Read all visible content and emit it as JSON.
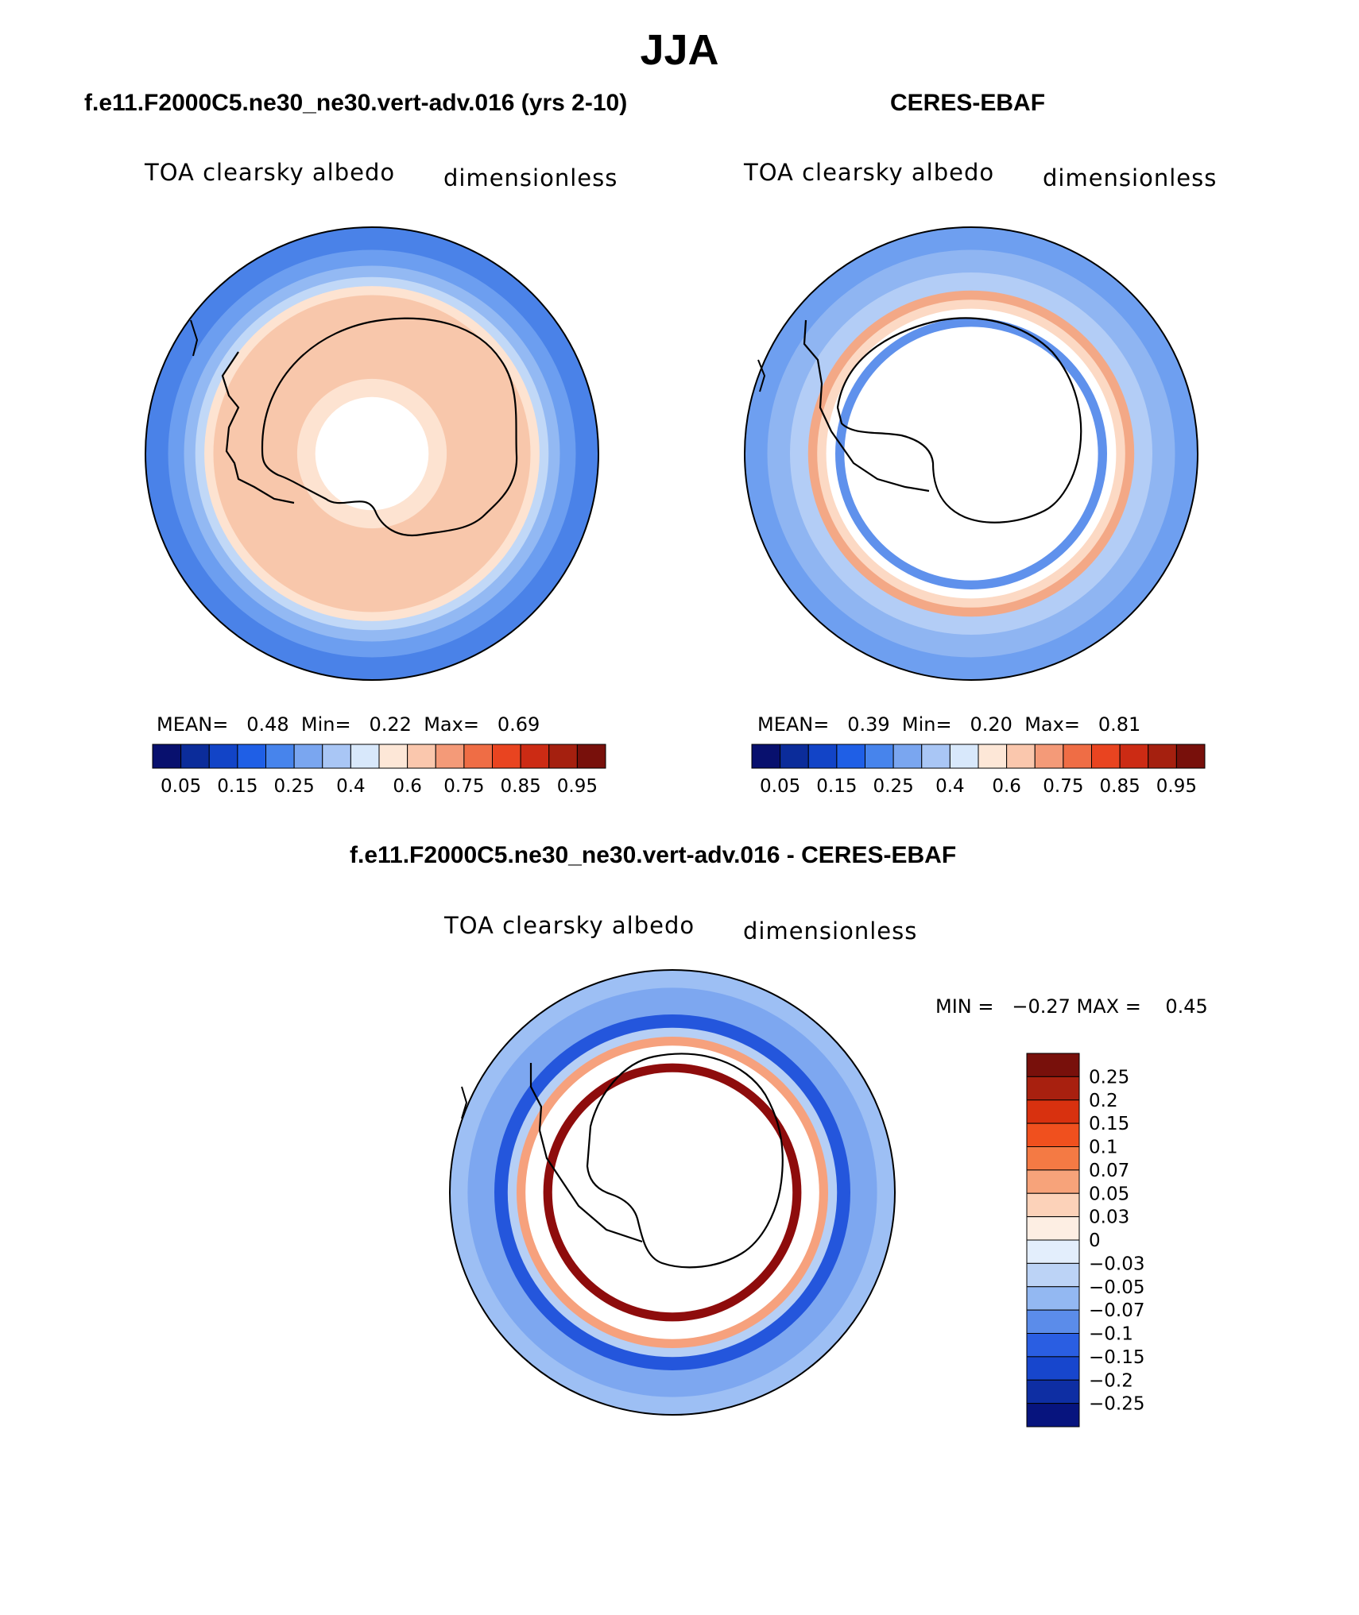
{
  "figure": {
    "title": "JJA",
    "panels": [
      {
        "id": "model",
        "heading": "f.e11.F2000C5.ne30_ne30.vert-adv.016 (yrs 2-10)",
        "variable": "TOA clearsky albedo",
        "units": "dimensionless",
        "stats_line": "MEAN=   0.48  Min=   0.22  Max=   0.69",
        "colorbar": {
          "colors": [
            "#08106e",
            "#0b2c9a",
            "#1244c7",
            "#1f5fe6",
            "#4784ec",
            "#7aa6f0",
            "#a9c6f5",
            "#d8e8fb",
            "#fde7d7",
            "#fac7ad",
            "#f49a78",
            "#ef6d45",
            "#e94420",
            "#cc2b14",
            "#a5200f",
            "#78100b"
          ],
          "tick_labels": [
            "0.05",
            "0.15",
            "0.25",
            "0.4",
            "0.6",
            "0.75",
            "0.85",
            "0.95"
          ]
        },
        "map_rings": [
          {
            "fraction": 1.0,
            "color": "#4a82e8"
          },
          {
            "fraction": 0.9,
            "color": "#6c9ef0"
          },
          {
            "fraction": 0.83,
            "color": "#93b9f3"
          },
          {
            "fraction": 0.78,
            "color": "#c1d8f7"
          },
          {
            "fraction": 0.74,
            "color": "#fde3d1"
          },
          {
            "fraction": 0.7,
            "color": "#f8c7ab"
          },
          {
            "fraction": 0.33,
            "color": "#fde3d1"
          },
          {
            "fraction": 0.25,
            "color": "#ffffff"
          }
        ]
      },
      {
        "id": "obs",
        "heading": "CERES-EBAF",
        "variable": "TOA clearsky albedo",
        "units": "dimensionless",
        "stats_line": "MEAN=   0.39  Min=   0.20  Max=   0.81",
        "colorbar": {
          "colors": [
            "#08106e",
            "#0b2c9a",
            "#1244c7",
            "#1f5fe6",
            "#4784ec",
            "#7aa6f0",
            "#a9c6f5",
            "#d8e8fb",
            "#fde7d7",
            "#fac7ad",
            "#f49a78",
            "#ef6d45",
            "#e94420",
            "#cc2b14",
            "#a5200f",
            "#78100b"
          ],
          "tick_labels": [
            "0.05",
            "0.15",
            "0.25",
            "0.4",
            "0.6",
            "0.75",
            "0.85",
            "0.95"
          ]
        },
        "map_rings": [
          {
            "fraction": 1.0,
            "color": "#6e9ff0"
          },
          {
            "fraction": 0.9,
            "color": "#8fb5f2"
          },
          {
            "fraction": 0.8,
            "color": "#b3cdf6"
          },
          {
            "fraction": 0.72,
            "color": "#f3a886"
          },
          {
            "fraction": 0.68,
            "color": "#fcd9c4"
          },
          {
            "fraction": 0.64,
            "color": "#ffffff"
          },
          {
            "fraction": 0.6,
            "color": "#5f91ec"
          },
          {
            "fraction": 0.56,
            "color": "#ffffff"
          }
        ]
      },
      {
        "id": "diff",
        "heading": "f.e11.F2000C5.ne30_ne30.vert-adv.016 - CERES-EBAF",
        "variable": "TOA clearsky albedo",
        "units": "dimensionless",
        "stats_line": "MIN =   −0.27 MAX =    0.45",
        "colorbar": {
          "colors": [
            "#78100b",
            "#a8200f",
            "#d8310f",
            "#f0501e",
            "#f47a44",
            "#f7a37a",
            "#fcd2b9",
            "#fdeee3",
            "#e3eefc",
            "#bcd3f6",
            "#93b8f2",
            "#5b8cea",
            "#2a5ee2",
            "#1746cd",
            "#0e2ea3",
            "#07147e"
          ],
          "tick_labels": [
            "0.25",
            "0.2",
            "0.15",
            "0.1",
            "0.07",
            "0.05",
            "0.03",
            "0",
            "−0.03",
            "−0.05",
            "−0.07",
            "−0.1",
            "−0.15",
            "−0.2",
            "−0.25"
          ]
        },
        "map_rings": [
          {
            "fraction": 1.0,
            "color": "#9dbff4"
          },
          {
            "fraction": 0.92,
            "color": "#7da7f0"
          },
          {
            "fraction": 0.8,
            "color": "#2456dc"
          },
          {
            "fraction": 0.74,
            "color": "#b6cff5"
          },
          {
            "fraction": 0.7,
            "color": "#f6a17d"
          },
          {
            "fraction": 0.66,
            "color": "#ffffff"
          },
          {
            "fraction": 0.58,
            "color": "#8e0c0c"
          },
          {
            "fraction": 0.54,
            "color": "#ffffff"
          }
        ]
      }
    ]
  }
}
